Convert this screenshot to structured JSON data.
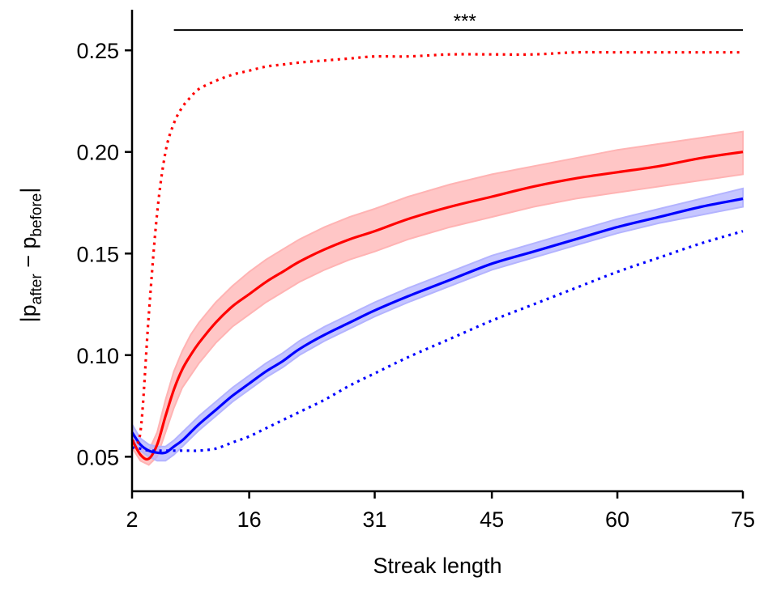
{
  "chart_data": {
    "type": "line",
    "title": "",
    "xlabel": "Streak length",
    "ylabel": {
      "prefix": "|p",
      "sub1": "after",
      "middle": " − p",
      "sub2": "before",
      "suffix": "|"
    },
    "xlim": [
      2,
      75
    ],
    "ylim": [
      0.033,
      0.27
    ],
    "xticks": [
      2,
      16,
      31,
      45,
      60,
      75
    ],
    "yticks": [
      0.05,
      0.1,
      0.15,
      0.2,
      0.25
    ],
    "ytick_labels": [
      "0.05",
      "0.10",
      "0.15",
      "0.20",
      "0.25"
    ],
    "grid": false,
    "legend": "none",
    "x": [
      2,
      3,
      4,
      5,
      6,
      7,
      8,
      9,
      10,
      12,
      14,
      16,
      18,
      20,
      22,
      25,
      28,
      31,
      35,
      40,
      45,
      50,
      55,
      60,
      65,
      70,
      75
    ],
    "series": [
      {
        "style": "solid",
        "color": "#ff0000",
        "band_color": "#ffb3b3",
        "values": [
          0.0585,
          0.051,
          0.049,
          0.056,
          0.07,
          0.083,
          0.093,
          0.1,
          0.106,
          0.116,
          0.124,
          0.13,
          0.136,
          0.141,
          0.146,
          0.152,
          0.157,
          0.161,
          0.167,
          0.173,
          0.178,
          0.183,
          0.187,
          0.19,
          0.193,
          0.197,
          0.2
        ],
        "lower": [
          0.0545,
          0.048,
          0.046,
          0.05,
          0.062,
          0.074,
          0.084,
          0.09,
          0.096,
          0.106,
          0.114,
          0.12,
          0.126,
          0.131,
          0.136,
          0.142,
          0.147,
          0.151,
          0.157,
          0.163,
          0.168,
          0.173,
          0.177,
          0.18,
          0.183,
          0.186,
          0.189
        ],
        "upper": [
          0.0625,
          0.054,
          0.053,
          0.062,
          0.078,
          0.092,
          0.102,
          0.11,
          0.116,
          0.126,
          0.134,
          0.141,
          0.147,
          0.152,
          0.157,
          0.163,
          0.168,
          0.172,
          0.178,
          0.184,
          0.189,
          0.193,
          0.197,
          0.201,
          0.204,
          0.207,
          0.21
        ]
      },
      {
        "style": "solid",
        "color": "#0000ff",
        "band_color": "#b3b3ff",
        "values": [
          0.062,
          0.056,
          0.053,
          0.052,
          0.052,
          0.055,
          0.058,
          0.062,
          0.066,
          0.073,
          0.08,
          0.086,
          0.092,
          0.097,
          0.103,
          0.11,
          0.116,
          0.122,
          0.129,
          0.137,
          0.145,
          0.151,
          0.157,
          0.163,
          0.168,
          0.173,
          0.177
        ],
        "lower": [
          0.059,
          0.053,
          0.05,
          0.048,
          0.048,
          0.051,
          0.055,
          0.059,
          0.063,
          0.07,
          0.077,
          0.083,
          0.089,
          0.094,
          0.1,
          0.107,
          0.113,
          0.119,
          0.126,
          0.134,
          0.142,
          0.148,
          0.154,
          0.16,
          0.165,
          0.169,
          0.173
        ],
        "upper": [
          0.066,
          0.059,
          0.056,
          0.055,
          0.055,
          0.058,
          0.062,
          0.066,
          0.07,
          0.077,
          0.084,
          0.09,
          0.096,
          0.101,
          0.107,
          0.114,
          0.12,
          0.126,
          0.133,
          0.141,
          0.149,
          0.155,
          0.161,
          0.167,
          0.172,
          0.177,
          0.182
        ]
      },
      {
        "style": "dotted",
        "color": "#ff0000",
        "values": [
          0.058,
          0.062,
          0.12,
          0.17,
          0.2,
          0.214,
          0.222,
          0.227,
          0.231,
          0.235,
          0.238,
          0.24,
          0.242,
          0.243,
          0.244,
          0.245,
          0.246,
          0.247,
          0.247,
          0.248,
          0.248,
          0.248,
          0.249,
          0.249,
          0.249,
          0.249,
          0.249
        ]
      },
      {
        "style": "dotted",
        "color": "#0000ff",
        "values": [
          0.0545,
          0.054,
          0.053,
          0.053,
          0.053,
          0.053,
          0.053,
          0.053,
          0.053,
          0.054,
          0.057,
          0.06,
          0.064,
          0.068,
          0.072,
          0.078,
          0.085,
          0.091,
          0.099,
          0.108,
          0.117,
          0.125,
          0.133,
          0.141,
          0.148,
          0.155,
          0.161
        ]
      }
    ],
    "significance": {
      "label": "***",
      "x_start": 7,
      "x_end": 75,
      "y": 0.26
    }
  }
}
